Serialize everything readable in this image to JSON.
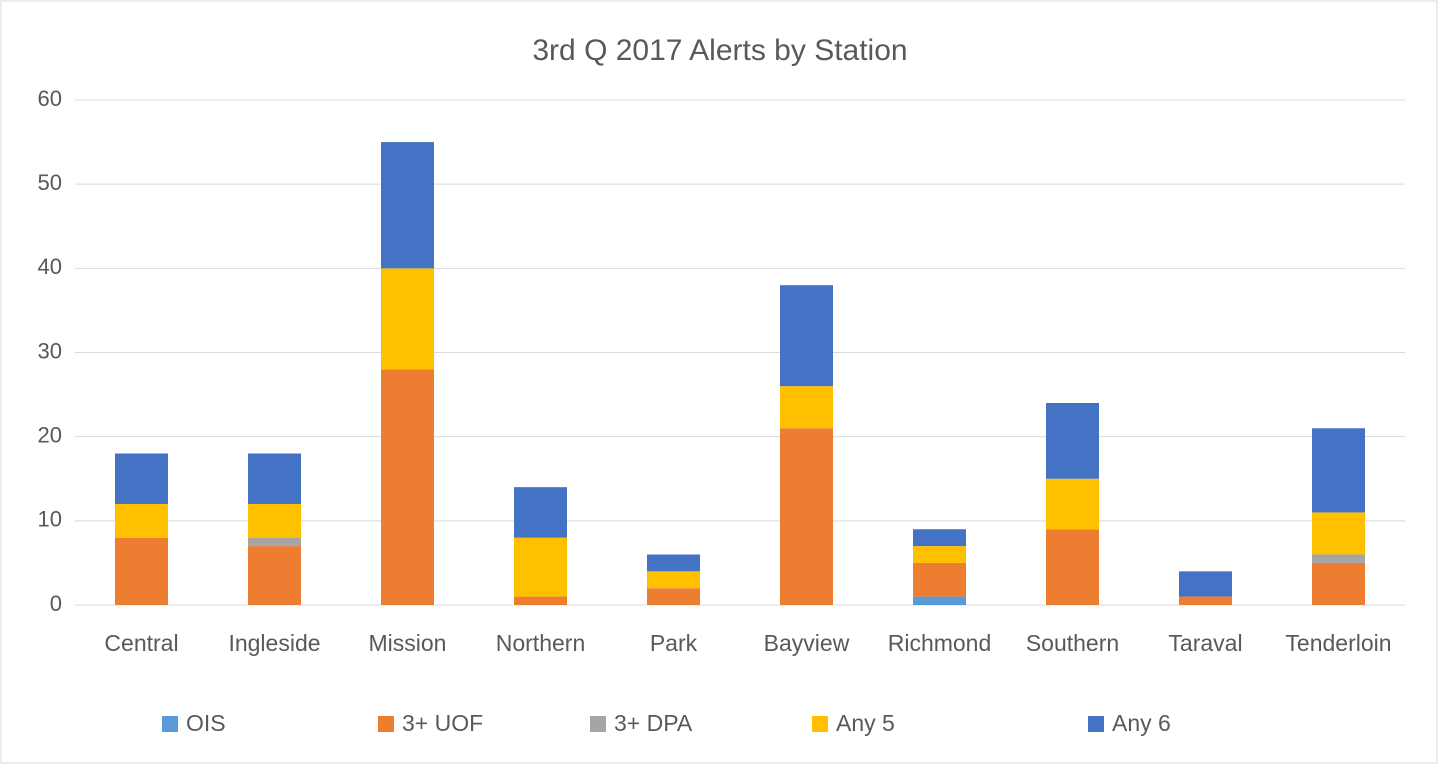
{
  "chart_data": {
    "type": "stacked_bar",
    "title": "3rd Q 2017 Alerts by Station",
    "categories": [
      "Central",
      "Ingleside",
      "Mission",
      "Northern",
      "Park",
      "Bayview",
      "Richmond",
      "Southern",
      "Taraval",
      "Tenderloin"
    ],
    "series": [
      {
        "name": "OIS",
        "color": "#5b9bd5",
        "values": [
          0,
          0,
          0,
          0,
          0,
          0,
          1,
          0,
          0,
          0
        ]
      },
      {
        "name": "3+ UOF",
        "color": "#ed7d31",
        "values": [
          8,
          7,
          28,
          1,
          2,
          21,
          4,
          9,
          1,
          5
        ]
      },
      {
        "name": "3+ DPA",
        "color": "#a5a5a5",
        "values": [
          0,
          1,
          0,
          0,
          0,
          0,
          0,
          0,
          0,
          1
        ]
      },
      {
        "name": "Any 5",
        "color": "#ffc000",
        "values": [
          4,
          4,
          12,
          7,
          2,
          5,
          2,
          6,
          0,
          5
        ]
      },
      {
        "name": "Any 6",
        "color": "#4472c4",
        "values": [
          6,
          6,
          15,
          6,
          2,
          12,
          2,
          9,
          3,
          10
        ]
      }
    ],
    "ylim": [
      0,
      60
    ],
    "yticks": [
      0,
      10,
      20,
      30,
      40,
      50,
      60
    ],
    "grid": true,
    "legend": "bottom"
  }
}
